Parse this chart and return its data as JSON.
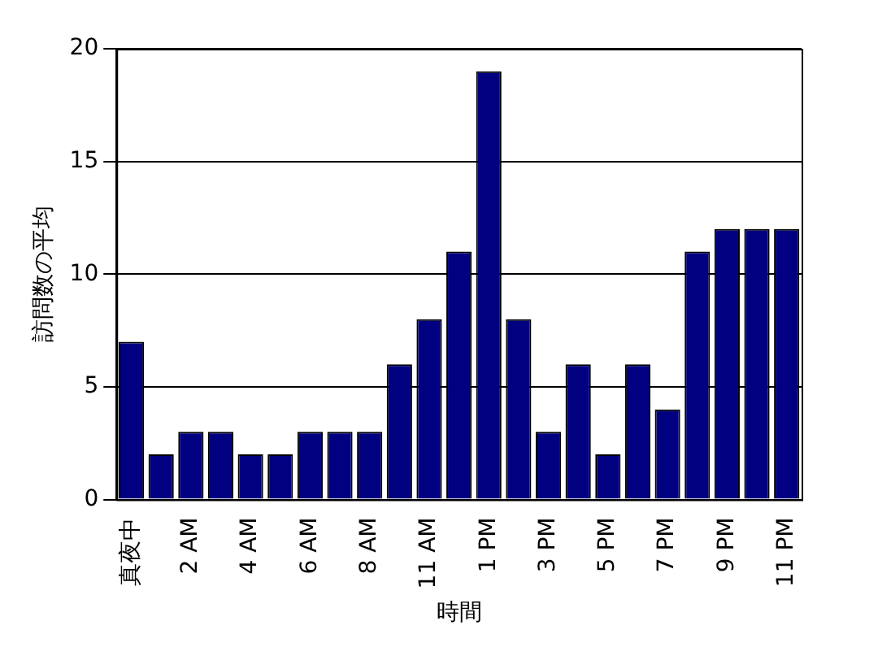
{
  "chart_data": {
    "type": "bar",
    "xlabel": "時間",
    "ylabel": "訪問数の平均",
    "categories": [
      "真夜中",
      null,
      "2 AM",
      null,
      "4 AM",
      null,
      "6 AM",
      null,
      "8 AM",
      null,
      "11 AM",
      null,
      "1 PM",
      null,
      "3 PM",
      null,
      "5 PM",
      null,
      "7 PM",
      null,
      "9 PM",
      null,
      "11 PM"
    ],
    "values": [
      7,
      2,
      3,
      3,
      2,
      2,
      3,
      3,
      3,
      6,
      8,
      11,
      19,
      8,
      3,
      6,
      2,
      6,
      4,
      11,
      12,
      12,
      12
    ],
    "color": "#000080",
    "ylim": [
      0,
      20
    ],
    "yticks": [
      0,
      5,
      10,
      15,
      20
    ],
    "grid": "y",
    "legend": false
  }
}
